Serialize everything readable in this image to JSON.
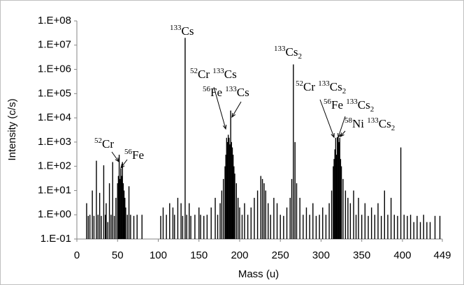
{
  "chart_data": {
    "type": "bar",
    "x_label": "Mass (u)",
    "y_label": "Intensity (c/s)",
    "color": "#000000",
    "log_y": true,
    "grid": false,
    "xlim": [
      0,
      449
    ],
    "xticks": [
      0,
      50,
      100,
      150,
      200,
      250,
      300,
      350,
      400,
      449
    ],
    "ylim": [
      0.1,
      100000000
    ],
    "yticks": [
      {
        "value": 0.1,
        "label": "1.E-01"
      },
      {
        "value": 1,
        "label": "1.E+00"
      },
      {
        "value": 10,
        "label": "1.E+01"
      },
      {
        "value": 100,
        "label": "1.E+02"
      },
      {
        "value": 1000,
        "label": "1.E+03"
      },
      {
        "value": 10000,
        "label": "1.E+04"
      },
      {
        "value": 100000,
        "label": "1.E+05"
      },
      {
        "value": 1000000,
        "label": "1.E+06"
      },
      {
        "value": 10000000,
        "label": "1.E+07"
      },
      {
        "value": 100000000,
        "label": "1.E+08"
      }
    ],
    "x": [
      12,
      14,
      16,
      19,
      21,
      24,
      26,
      28,
      30,
      33,
      35,
      36,
      38,
      40,
      42,
      44,
      46,
      48,
      50,
      51,
      52,
      53,
      54,
      55,
      56,
      57,
      58,
      59,
      60,
      62,
      64,
      66,
      70,
      74,
      80,
      103,
      106,
      110,
      114,
      118,
      120,
      124,
      128,
      130,
      133,
      135,
      138,
      140,
      145,
      150,
      152,
      156,
      160,
      165,
      170,
      173,
      176,
      178,
      180,
      182,
      183,
      184,
      185,
      186,
      187,
      188,
      189,
      190,
      191,
      192,
      193,
      194,
      196,
      198,
      200,
      203,
      206,
      210,
      214,
      218,
      222,
      226,
      228,
      230,
      232,
      235,
      238,
      242,
      246,
      250,
      254,
      258,
      262,
      264,
      266,
      268,
      270,
      274,
      278,
      282,
      286,
      290,
      294,
      298,
      302,
      306,
      310,
      313,
      315,
      316,
      317,
      318,
      319,
      320,
      321,
      322,
      323,
      324,
      325,
      327,
      330,
      333,
      336,
      340,
      343,
      346,
      350,
      354,
      358,
      362,
      366,
      370,
      374,
      378,
      382,
      386,
      390,
      394,
      398,
      402,
      406,
      410,
      414,
      418,
      422,
      426,
      430,
      434,
      440,
      446
    ],
    "values": [
      3,
      0.9,
      1,
      10,
      0.9,
      170,
      1,
      8,
      0.9,
      110,
      1,
      3,
      0.5,
      20,
      1,
      150,
      0.9,
      5,
      20,
      40,
      300,
      30,
      80,
      40,
      150,
      20,
      10,
      5,
      2,
      1,
      15,
      1,
      0.9,
      1,
      1,
      0.9,
      2,
      1,
      3,
      2,
      1,
      5,
      3,
      0.9,
      20000000,
      1,
      3,
      0.9,
      1,
      2,
      1,
      0.9,
      1,
      2,
      5,
      1,
      3,
      10,
      30,
      100,
      300,
      1500,
      1000,
      2000,
      1500,
      800,
      20000,
      1000,
      600,
      300,
      100,
      50,
      20,
      5,
      2,
      1,
      3,
      1,
      2,
      5,
      10,
      40,
      30,
      20,
      10,
      3,
      1,
      5,
      3,
      1,
      0.9,
      2,
      5,
      30,
      1600000,
      1000,
      20,
      5,
      1,
      2,
      1,
      3,
      0.9,
      1,
      2,
      1,
      3,
      10,
      100,
      200,
      500,
      1500,
      300,
      1600,
      1600,
      1000,
      1500,
      200,
      100,
      30,
      10,
      5,
      3,
      10,
      1,
      5,
      1,
      3,
      0.9,
      2,
      1,
      3,
      0.9,
      10,
      1,
      5,
      1,
      0.9,
      600,
      1,
      0.9,
      1,
      0.5,
      0.9,
      0.5,
      1,
      0.5,
      0.5,
      0.9,
      0.9
    ],
    "annotations": [
      {
        "parts": [
          {
            "sup": "133"
          },
          {
            "text": "Cs"
          }
        ]
      },
      {
        "parts": [
          {
            "sup": "133"
          },
          {
            "text": "Cs"
          },
          {
            "sub": "2"
          }
        ]
      },
      {
        "parts": [
          {
            "sup": "52"
          },
          {
            "text": "Cr "
          },
          {
            "sup": "133"
          },
          {
            "text": "Cs"
          }
        ]
      },
      {
        "parts": [
          {
            "sup": "56"
          },
          {
            "text": "Fe "
          },
          {
            "sup": "133"
          },
          {
            "text": "Cs"
          }
        ]
      },
      {
        "parts": [
          {
            "sup": "52"
          },
          {
            "text": "Cr"
          }
        ]
      },
      {
        "parts": [
          {
            "sup": "56"
          },
          {
            "text": "Fe"
          }
        ]
      },
      {
        "parts": [
          {
            "sup": "52"
          },
          {
            "text": "Cr "
          },
          {
            "sup": "133"
          },
          {
            "text": "Cs"
          },
          {
            "sub": "2"
          }
        ]
      },
      {
        "parts": [
          {
            "sup": "56"
          },
          {
            "text": "Fe "
          },
          {
            "sup": "133"
          },
          {
            "text": "Cs"
          },
          {
            "sub": "2"
          }
        ]
      },
      {
        "parts": [
          {
            "sup": "58"
          },
          {
            "text": "Ni "
          },
          {
            "sup": "133"
          },
          {
            "text": "Cs"
          },
          {
            "sub": "2"
          }
        ]
      }
    ]
  }
}
